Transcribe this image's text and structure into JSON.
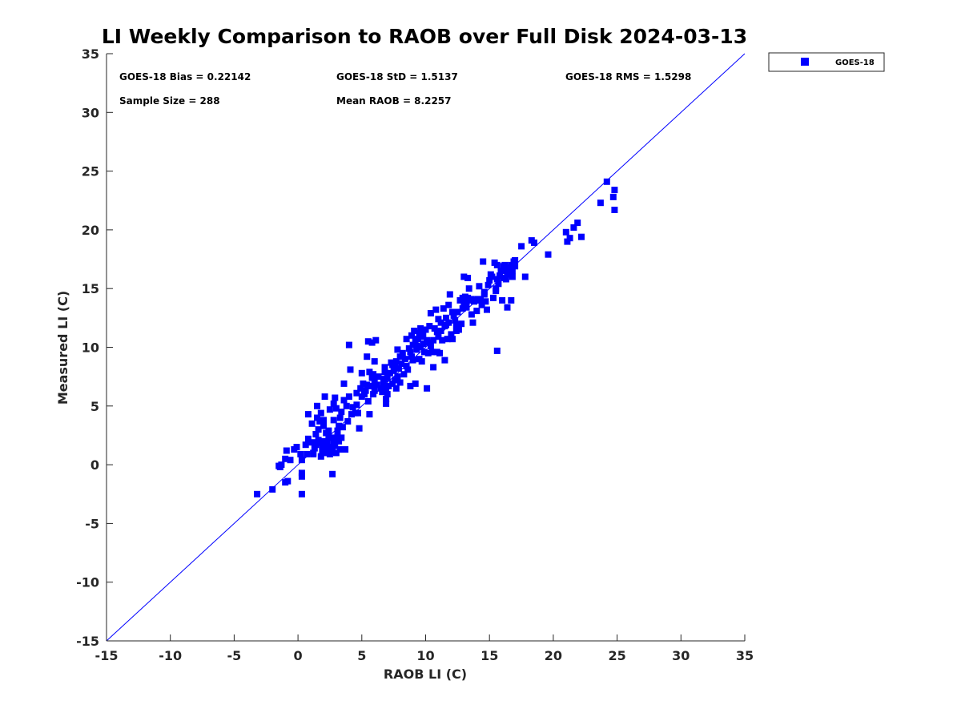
{
  "chart_data": {
    "type": "scatter",
    "title": "LI Weekly Comparison to RAOB over Full Disk 2024-03-13",
    "xlabel": "RAOB LI (C)",
    "ylabel": "Measured LI (C)",
    "xlim": [
      -15,
      35
    ],
    "ylim": [
      -15,
      35
    ],
    "xticks": [
      "-15",
      "-10",
      "-5",
      "0",
      "5",
      "10",
      "15",
      "20",
      "25",
      "30",
      "35"
    ],
    "yticks": [
      "-15",
      "-10",
      "-5",
      "0",
      "5",
      "10",
      "15",
      "20",
      "25",
      "30",
      "35"
    ],
    "grid": false,
    "legend_position": "outside-top-right",
    "reference_line": {
      "name": "1:1 line",
      "from": [
        -15,
        -15
      ],
      "to": [
        35,
        35
      ],
      "color": "#0000ff"
    },
    "stats": [
      "GOES-18 Bias = 0.22142",
      "GOES-18 StD = 1.5137",
      "GOES-18 RMS = 1.5298",
      "Sample Size = 288",
      "Mean RAOB = 8.2257"
    ],
    "series": [
      {
        "name": "GOES-18",
        "color": "#0000ff",
        "marker": "square",
        "points": [
          [
            -3.2,
            -2.5
          ],
          [
            -2.0,
            -2.1
          ],
          [
            -1.5,
            -0.1
          ],
          [
            -1.4,
            -0.2
          ],
          [
            -1.3,
            0.0
          ],
          [
            -1.0,
            -1.5
          ],
          [
            -0.8,
            -1.4
          ],
          [
            -1.0,
            0.5
          ],
          [
            -0.9,
            1.2
          ],
          [
            -0.6,
            0.4
          ],
          [
            -0.3,
            1.3
          ],
          [
            -0.1,
            1.5
          ],
          [
            0.2,
            0.9
          ],
          [
            0.3,
            0.4
          ],
          [
            0.3,
            -0.7
          ],
          [
            0.3,
            -1.0
          ],
          [
            0.3,
            -2.5
          ],
          [
            0.7,
            0.9
          ],
          [
            0.8,
            2.2
          ],
          [
            0.8,
            4.3
          ],
          [
            1.0,
            1.9
          ],
          [
            1.2,
            1.0
          ],
          [
            1.3,
            1.4
          ],
          [
            1.4,
            1.7
          ],
          [
            1.5,
            1.9
          ],
          [
            1.6,
            2.1
          ],
          [
            1.6,
            3.0
          ],
          [
            1.5,
            4.0
          ],
          [
            1.5,
            5.0
          ],
          [
            1.8,
            0.7
          ],
          [
            1.9,
            1.2
          ],
          [
            1.9,
            1.6
          ],
          [
            2.0,
            2.0
          ],
          [
            2.0,
            3.3
          ],
          [
            2.0,
            3.8
          ],
          [
            2.1,
            5.8
          ],
          [
            2.2,
            1.0
          ],
          [
            2.3,
            1.4
          ],
          [
            2.3,
            1.9
          ],
          [
            2.4,
            2.4
          ],
          [
            2.4,
            2.9
          ],
          [
            2.5,
            4.7
          ],
          [
            2.6,
            1.1
          ],
          [
            2.7,
            1.5
          ],
          [
            2.8,
            2.0
          ],
          [
            2.8,
            3.8
          ],
          [
            2.8,
            5.2
          ],
          [
            2.9,
            5.7
          ],
          [
            2.7,
            -0.8
          ],
          [
            3.0,
            1.0
          ],
          [
            3.1,
            2.5
          ],
          [
            3.1,
            2.9
          ],
          [
            3.2,
            3.3
          ],
          [
            3.3,
            1.3
          ],
          [
            3.3,
            4.0
          ],
          [
            3.4,
            4.5
          ],
          [
            3.5,
            3.2
          ],
          [
            3.6,
            5.5
          ],
          [
            3.6,
            6.9
          ],
          [
            3.7,
            1.3
          ],
          [
            3.8,
            5.0
          ],
          [
            3.9,
            3.7
          ],
          [
            4.0,
            5.8
          ],
          [
            4.0,
            10.2
          ],
          [
            4.1,
            8.1
          ],
          [
            4.2,
            4.3
          ],
          [
            4.5,
            4.4
          ],
          [
            4.6,
            6.1
          ],
          [
            4.7,
            4.4
          ],
          [
            4.8,
            3.1
          ],
          [
            4.9,
            6.5
          ],
          [
            5.0,
            5.8
          ],
          [
            5.0,
            7.8
          ],
          [
            5.1,
            6.9
          ],
          [
            5.3,
            6.3
          ],
          [
            5.4,
            6.8
          ],
          [
            5.4,
            9.2
          ],
          [
            5.5,
            5.4
          ],
          [
            5.5,
            10.5
          ],
          [
            5.6,
            7.9
          ],
          [
            5.6,
            4.3
          ],
          [
            5.7,
            6.7
          ],
          [
            5.8,
            7.4
          ],
          [
            5.8,
            10.4
          ],
          [
            5.9,
            6.0
          ],
          [
            6.0,
            7.0
          ],
          [
            6.0,
            8.8
          ],
          [
            6.1,
            10.6
          ],
          [
            6.2,
            6.8
          ],
          [
            6.5,
            6.5
          ],
          [
            6.7,
            7.0
          ],
          [
            6.8,
            7.9
          ],
          [
            6.8,
            8.3
          ],
          [
            6.9,
            6.5
          ],
          [
            6.9,
            5.6
          ],
          [
            6.9,
            5.2
          ],
          [
            7.0,
            7.4
          ],
          [
            7.1,
            6.7
          ],
          [
            7.2,
            7.8
          ],
          [
            7.3,
            8.7
          ],
          [
            7.4,
            6.9
          ],
          [
            7.5,
            8.0
          ],
          [
            7.6,
            7.2
          ],
          [
            7.7,
            8.8
          ],
          [
            7.7,
            6.5
          ],
          [
            7.8,
            7.5
          ],
          [
            7.8,
            9.8
          ],
          [
            7.9,
            8.2
          ],
          [
            8.0,
            7.0
          ],
          [
            8.1,
            8.6
          ],
          [
            8.2,
            9.5
          ],
          [
            8.3,
            7.7
          ],
          [
            8.4,
            9.0
          ],
          [
            8.5,
            10.7
          ],
          [
            8.5,
            8.4
          ],
          [
            8.6,
            8.1
          ],
          [
            8.7,
            9.9
          ],
          [
            8.8,
            6.7
          ],
          [
            8.8,
            9.6
          ],
          [
            8.9,
            11.0
          ],
          [
            9.0,
            10.2
          ],
          [
            9.0,
            8.9
          ],
          [
            9.1,
            11.4
          ],
          [
            9.2,
            6.9
          ],
          [
            9.2,
            10.5
          ],
          [
            9.3,
            9.8
          ],
          [
            9.4,
            10.7
          ],
          [
            9.5,
            11.2
          ],
          [
            9.5,
            9.0
          ],
          [
            9.6,
            11.6
          ],
          [
            9.7,
            8.8
          ],
          [
            9.8,
            10.3
          ],
          [
            9.8,
            11.0
          ],
          [
            9.9,
            9.6
          ],
          [
            10.0,
            11.5
          ],
          [
            10.1,
            6.5
          ],
          [
            10.1,
            10.6
          ],
          [
            10.2,
            9.5
          ],
          [
            10.3,
            11.8
          ],
          [
            10.4,
            12.9
          ],
          [
            10.5,
            9.6
          ],
          [
            10.6,
            8.3
          ],
          [
            10.6,
            10.6
          ],
          [
            10.7,
            11.6
          ],
          [
            10.8,
            13.2
          ],
          [
            10.9,
            9.6
          ],
          [
            11.0,
            12.4
          ],
          [
            11.0,
            10.9
          ],
          [
            11.1,
            9.5
          ],
          [
            11.2,
            12.1
          ],
          [
            11.2,
            11.4
          ],
          [
            11.3,
            10.6
          ],
          [
            11.4,
            13.3
          ],
          [
            11.5,
            8.9
          ],
          [
            11.5,
            11.8
          ],
          [
            11.6,
            12.5
          ],
          [
            11.7,
            10.7
          ],
          [
            11.8,
            12.1
          ],
          [
            11.9,
            14.5
          ],
          [
            12.0,
            11.1
          ],
          [
            12.1,
            10.7
          ],
          [
            12.1,
            13.0
          ],
          [
            12.3,
            12.3
          ],
          [
            12.4,
            11.9
          ],
          [
            12.5,
            13.0
          ],
          [
            12.6,
            11.5
          ],
          [
            12.7,
            14.0
          ],
          [
            12.8,
            12.0
          ],
          [
            12.9,
            14.2
          ],
          [
            13.0,
            13.7
          ],
          [
            13.0,
            16.0
          ],
          [
            13.1,
            14.3
          ],
          [
            13.2,
            13.4
          ],
          [
            13.3,
            14.2
          ],
          [
            13.3,
            15.9
          ],
          [
            13.4,
            15.0
          ],
          [
            13.5,
            14.0
          ],
          [
            13.6,
            12.8
          ],
          [
            13.7,
            12.1
          ],
          [
            13.8,
            13.9
          ],
          [
            14.0,
            13.1
          ],
          [
            14.1,
            14.1
          ],
          [
            14.2,
            15.2
          ],
          [
            14.3,
            14.0
          ],
          [
            14.4,
            13.6
          ],
          [
            14.5,
            17.3
          ],
          [
            14.6,
            14.7
          ],
          [
            14.7,
            13.9
          ],
          [
            14.8,
            13.2
          ],
          [
            14.9,
            15.3
          ],
          [
            15.0,
            15.7
          ],
          [
            15.1,
            16.2
          ],
          [
            15.3,
            14.2
          ],
          [
            15.4,
            17.2
          ],
          [
            15.5,
            14.8
          ],
          [
            15.5,
            15.0
          ],
          [
            15.6,
            17.0
          ],
          [
            15.6,
            15.8
          ],
          [
            15.6,
            9.7
          ],
          [
            15.8,
            16.1
          ],
          [
            15.9,
            16.5
          ],
          [
            16.0,
            14.0
          ],
          [
            16.1,
            16.9
          ],
          [
            16.1,
            15.9
          ],
          [
            16.2,
            16.6
          ],
          [
            16.3,
            15.8
          ],
          [
            16.4,
            16.2
          ],
          [
            16.4,
            13.4
          ],
          [
            16.5,
            16.8
          ],
          [
            16.6,
            16.3
          ],
          [
            16.7,
            17.0
          ],
          [
            16.7,
            14.0
          ],
          [
            16.8,
            16.5
          ],
          [
            16.9,
            17.3
          ],
          [
            17.0,
            16.9
          ],
          [
            17.0,
            17.4
          ],
          [
            17.5,
            18.6
          ],
          [
            17.8,
            16.0
          ],
          [
            18.3,
            19.1
          ],
          [
            18.5,
            18.9
          ],
          [
            19.6,
            17.9
          ],
          [
            21.0,
            19.8
          ],
          [
            21.1,
            19.0
          ],
          [
            21.3,
            19.3
          ],
          [
            21.6,
            20.2
          ],
          [
            21.9,
            20.6
          ],
          [
            22.2,
            19.4
          ],
          [
            23.7,
            22.3
          ],
          [
            24.2,
            24.1
          ],
          [
            24.7,
            22.8
          ],
          [
            24.8,
            23.4
          ],
          [
            24.8,
            21.7
          ],
          [
            0.6,
            1.7
          ],
          [
            1.1,
            3.5
          ],
          [
            1.4,
            2.6
          ],
          [
            1.8,
            4.4
          ],
          [
            2.2,
            2.7
          ],
          [
            2.5,
            0.9
          ],
          [
            3.0,
            4.8
          ],
          [
            3.4,
            2.3
          ],
          [
            4.3,
            4.9
          ],
          [
            5.2,
            6.0
          ],
          [
            6.3,
            7.5
          ],
          [
            6.6,
            6.2
          ],
          [
            7.4,
            8.5
          ],
          [
            8.0,
            9.2
          ],
          [
            9.6,
            10.0
          ],
          [
            10.4,
            10.1
          ],
          [
            11.8,
            13.6
          ],
          [
            12.2,
            12.7
          ],
          [
            13.9,
            14.0
          ],
          [
            14.6,
            14.5
          ],
          [
            15.2,
            16.0
          ],
          [
            16.8,
            16.0
          ],
          [
            2.0,
            1.4
          ],
          [
            2.6,
            2.3
          ],
          [
            3.2,
            2.0
          ],
          [
            1.7,
            3.7
          ],
          [
            6.0,
            6.3
          ],
          [
            7.0,
            6.0
          ],
          [
            8.9,
            9.2
          ],
          [
            9.3,
            10.1
          ],
          [
            10.9,
            11.3
          ],
          [
            12.4,
            11.4
          ],
          [
            13.2,
            13.8
          ],
          [
            15.7,
            15.4
          ],
          [
            1.2,
            0.9
          ],
          [
            2.9,
            1.6
          ],
          [
            5.9,
            7.7
          ],
          [
            6.8,
            7.3
          ],
          [
            9.7,
            10.9
          ],
          [
            11.6,
            11.9
          ],
          [
            13.6,
            14.1
          ],
          [
            16.2,
            17.0
          ],
          [
            4.6,
            5.1
          ],
          [
            7.6,
            8.3
          ],
          [
            10.2,
            10.4
          ],
          [
            12.9,
            13.3
          ]
        ]
      }
    ]
  }
}
